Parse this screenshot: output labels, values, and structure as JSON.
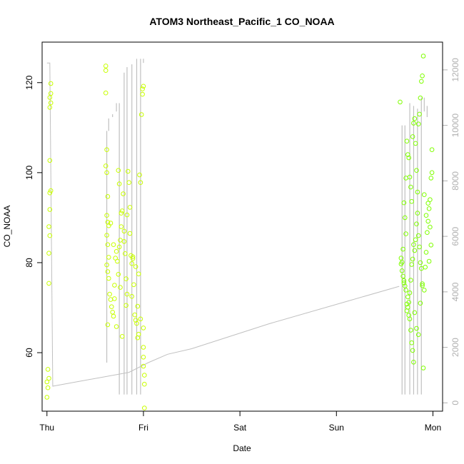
{
  "chart_data": {
    "type": "scatter",
    "title": "ATOM3 Northeast_Pacific_1 CO_NOAA",
    "xlabel": "Date",
    "ylabel": "CO_NOAA",
    "x_ticks": [
      "Thu",
      "Fri",
      "Sat",
      "Sun",
      "Mon"
    ],
    "x_range_days": [
      -0.05,
      4.1
    ],
    "ylim": [
      47,
      129
    ],
    "y_ticks": [
      60,
      80,
      100,
      120
    ],
    "y2lim": [
      -300,
      13000
    ],
    "y2_ticks": [
      0,
      2000,
      4000,
      6000,
      8000,
      10000,
      12000
    ],
    "grid": false,
    "colors": {
      "points_a": "#c8ff00",
      "points_b": "#7fff00",
      "secondary_line": "#c0c0c0"
    },
    "secondary_series": [
      [
        0.0,
        12250
      ],
      [
        0.03,
        12250
      ],
      [
        0.06,
        600
      ],
      [
        0.85,
        1100
      ],
      [
        1.05,
        1450
      ],
      [
        1.25,
        1750
      ],
      [
        1.5,
        1950
      ],
      [
        2.3,
        2850
      ],
      [
        3.1,
        3650
      ],
      [
        3.65,
        4200
      ]
    ],
    "secondary_spikes": [
      [
        0.62,
        1450,
        9800
      ],
      [
        0.64,
        9800,
        10250
      ],
      [
        0.68,
        10300,
        10400
      ],
      [
        0.72,
        10500,
        10800
      ],
      [
        0.75,
        300,
        10800
      ],
      [
        0.8,
        300,
        11900
      ],
      [
        0.83,
        300,
        12100
      ],
      [
        0.88,
        300,
        12200
      ],
      [
        0.93,
        300,
        12400
      ],
      [
        0.97,
        300,
        12400
      ],
      [
        1.0,
        12250,
        12400
      ],
      [
        0.1,
        12250,
        12250
      ],
      [
        3.68,
        300,
        10000
      ],
      [
        3.71,
        300,
        10000
      ],
      [
        3.76,
        300,
        10800
      ],
      [
        3.8,
        300,
        10700
      ],
      [
        3.84,
        300,
        10600
      ],
      [
        3.88,
        300,
        11000
      ],
      [
        3.91,
        10500,
        11000
      ],
      [
        3.94,
        10300,
        10700
      ]
    ],
    "series": [
      {
        "points": [
          [
            0.0,
            50.1
          ],
          [
            0.01,
            52.2
          ],
          [
            0.0,
            53.5
          ],
          [
            0.02,
            54.3
          ],
          [
            0.01,
            56.3
          ],
          [
            0.02,
            75.4
          ],
          [
            0.02,
            82.1
          ],
          [
            0.03,
            86.0
          ],
          [
            0.02,
            88.0
          ],
          [
            0.03,
            91.8
          ],
          [
            0.03,
            95.5
          ],
          [
            0.04,
            96.0
          ],
          [
            0.03,
            102.7
          ],
          [
            0.03,
            114.5
          ],
          [
            0.04,
            115.5
          ],
          [
            0.03,
            116.7
          ],
          [
            0.04,
            117.6
          ],
          [
            0.04,
            119.8
          ],
          [
            0.61,
            117.7
          ],
          [
            0.61,
            122.7
          ],
          [
            0.61,
            123.7
          ],
          [
            0.62,
            105.1
          ],
          [
            0.61,
            101.5
          ],
          [
            0.62,
            100.0
          ],
          [
            0.63,
            94.7
          ],
          [
            0.62,
            90.5
          ],
          [
            0.63,
            89.0
          ],
          [
            0.64,
            88.2
          ],
          [
            0.62,
            86.1
          ],
          [
            0.63,
            84.0
          ],
          [
            0.64,
            81.2
          ],
          [
            0.62,
            79.5
          ],
          [
            0.63,
            78.0
          ],
          [
            0.64,
            76.5
          ],
          [
            0.63,
            66.2
          ],
          [
            0.65,
            73.0
          ],
          [
            0.66,
            71.8
          ],
          [
            0.67,
            70.2
          ],
          [
            0.68,
            69.0
          ],
          [
            0.69,
            68.1
          ],
          [
            0.7,
            72.0
          ],
          [
            0.71,
            81.0
          ],
          [
            0.72,
            82.5
          ],
          [
            0.73,
            80.3
          ],
          [
            0.74,
            77.4
          ],
          [
            0.75,
            83.5
          ],
          [
            0.76,
            85.0
          ],
          [
            0.77,
            88.0
          ],
          [
            0.78,
            91.5
          ],
          [
            0.79,
            95.3
          ],
          [
            0.8,
            87.0
          ],
          [
            0.81,
            82.0
          ],
          [
            0.82,
            76.4
          ],
          [
            0.83,
            73.0
          ],
          [
            0.84,
            100.3
          ],
          [
            0.85,
            97.8
          ],
          [
            0.86,
            92.3
          ],
          [
            0.87,
            81.6
          ],
          [
            0.88,
            79.8
          ],
          [
            0.89,
            80.9
          ],
          [
            0.9,
            75.1
          ],
          [
            0.91,
            68.4
          ],
          [
            0.92,
            67.2
          ],
          [
            0.93,
            66.5
          ],
          [
            0.94,
            63.3
          ],
          [
            0.95,
            64.1
          ],
          [
            0.96,
            99.5
          ],
          [
            0.97,
            97.8
          ],
          [
            0.98,
            112.9
          ],
          [
            0.99,
            117.4
          ],
          [
            0.99,
            118.6
          ],
          [
            1.0,
            119.2
          ],
          [
            1.0,
            65.5
          ],
          [
            1.0,
            61.2
          ],
          [
            1.0,
            59.0
          ],
          [
            1.0,
            57.0
          ],
          [
            1.01,
            55.0
          ],
          [
            1.01,
            53.0
          ],
          [
            1.01,
            47.7
          ],
          [
            0.74,
            100.5
          ],
          [
            0.75,
            97.5
          ],
          [
            0.77,
            91.0
          ],
          [
            0.8,
            84.7
          ],
          [
            0.83,
            90.6
          ],
          [
            0.86,
            86.5
          ],
          [
            0.89,
            81.3
          ],
          [
            0.92,
            79.1
          ],
          [
            0.95,
            77.5
          ],
          [
            0.72,
            65.8
          ],
          [
            0.78,
            63.6
          ],
          [
            0.7,
            75.0
          ],
          [
            0.76,
            74.5
          ],
          [
            0.82,
            70.5
          ],
          [
            0.88,
            72.5
          ],
          [
            0.94,
            70.3
          ],
          [
            0.97,
            67.5
          ],
          [
            0.66,
            88.8
          ],
          [
            0.69,
            84.0
          ]
        ]
      },
      {
        "points": [
          [
            3.66,
            115.7
          ],
          [
            3.67,
            79.7
          ],
          [
            3.68,
            78.2
          ],
          [
            3.69,
            77.0
          ],
          [
            3.7,
            76.0
          ],
          [
            3.71,
            74.8
          ],
          [
            3.72,
            73.9
          ],
          [
            3.67,
            81.0
          ],
          [
            3.68,
            80.1
          ],
          [
            3.73,
            70.8
          ],
          [
            3.74,
            72.4
          ],
          [
            3.75,
            68.3
          ],
          [
            3.76,
            67.5
          ],
          [
            3.77,
            65.0
          ],
          [
            3.78,
            62.2
          ],
          [
            3.79,
            60.5
          ],
          [
            3.8,
            57.9
          ],
          [
            3.73,
            107.0
          ],
          [
            3.74,
            104.0
          ],
          [
            3.75,
            103.3
          ],
          [
            3.76,
            99.0
          ],
          [
            3.77,
            96.8
          ],
          [
            3.78,
            93.6
          ],
          [
            3.79,
            108.0
          ],
          [
            3.8,
            111.0
          ],
          [
            3.81,
            112.0
          ],
          [
            3.82,
            106.5
          ],
          [
            3.83,
            100.5
          ],
          [
            3.84,
            91.0
          ],
          [
            3.85,
            86.0
          ],
          [
            3.86,
            83.5
          ],
          [
            3.87,
            80.0
          ],
          [
            3.88,
            78.7
          ],
          [
            3.89,
            75.3
          ],
          [
            3.9,
            56.6
          ],
          [
            3.91,
            73.9
          ],
          [
            3.92,
            79.0
          ],
          [
            3.93,
            82.3
          ],
          [
            3.94,
            86.7
          ],
          [
            3.95,
            89.2
          ],
          [
            3.96,
            92.0
          ],
          [
            3.97,
            94.0
          ],
          [
            3.98,
            98.8
          ],
          [
            3.99,
            105.1
          ],
          [
            3.9,
            125.9
          ],
          [
            3.89,
            121.5
          ],
          [
            3.88,
            120.3
          ],
          [
            3.87,
            116.6
          ],
          [
            3.86,
            113.0
          ],
          [
            3.85,
            110.8
          ],
          [
            3.84,
            95.7
          ],
          [
            3.83,
            88.6
          ],
          [
            3.82,
            85.1
          ],
          [
            3.81,
            82.7
          ],
          [
            3.8,
            84.0
          ],
          [
            3.79,
            80.8
          ],
          [
            3.78,
            79.6
          ],
          [
            3.77,
            76.1
          ],
          [
            3.76,
            73.3
          ],
          [
            3.75,
            71.2
          ],
          [
            3.74,
            70.1
          ],
          [
            3.73,
            69.3
          ],
          [
            3.72,
            98.8
          ],
          [
            3.96,
            80.3
          ],
          [
            3.98,
            83.9
          ],
          [
            3.97,
            87.9
          ],
          [
            3.95,
            93.2
          ],
          [
            3.93,
            90.5
          ],
          [
            3.91,
            95.1
          ],
          [
            3.99,
            100.0
          ],
          [
            3.7,
            93.3
          ],
          [
            3.71,
            90.0
          ],
          [
            3.72,
            86.4
          ],
          [
            3.69,
            83.0
          ],
          [
            3.7,
            75.5
          ],
          [
            3.81,
            68.9
          ],
          [
            3.83,
            65.4
          ],
          [
            3.85,
            64.0
          ],
          [
            3.87,
            71.0
          ],
          [
            3.89,
            74.9
          ]
        ]
      }
    ]
  }
}
